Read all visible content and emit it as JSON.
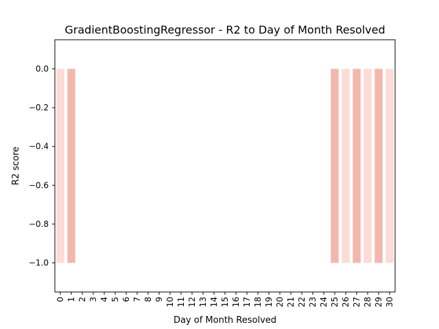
{
  "chart_data": {
    "type": "bar",
    "title": "GradientBoostingRegressor - R2 to Day of Month Resolved",
    "xlabel": "Day of Month Resolved",
    "ylabel": "R2 score",
    "categories": [
      "0",
      "1",
      "2",
      "3",
      "4",
      "5",
      "6",
      "7",
      "8",
      "9",
      "10",
      "11",
      "12",
      "13",
      "14",
      "15",
      "16",
      "17",
      "18",
      "19",
      "20",
      "21",
      "22",
      "23",
      "24",
      "25",
      "26",
      "27",
      "28",
      "29",
      "30"
    ],
    "values": [
      -1.0,
      -1.0,
      null,
      null,
      null,
      null,
      null,
      null,
      null,
      null,
      null,
      null,
      null,
      null,
      null,
      null,
      null,
      null,
      null,
      null,
      null,
      null,
      null,
      null,
      null,
      -1.0,
      -1.0,
      -1.0,
      -1.0,
      -1.0,
      -1.0
    ],
    "bar_colors": [
      "#fbdcd6",
      "#f2b8ad"
    ],
    "ylim": [
      -1.15,
      0.15
    ],
    "yticks": [
      0.0,
      -0.2,
      -0.4,
      -0.6,
      -0.8,
      -1.0
    ],
    "ytick_labels": [
      "0.0",
      "−0.2",
      "−0.4",
      "−0.6",
      "−0.8",
      "−1.0"
    ],
    "grid": false
  }
}
